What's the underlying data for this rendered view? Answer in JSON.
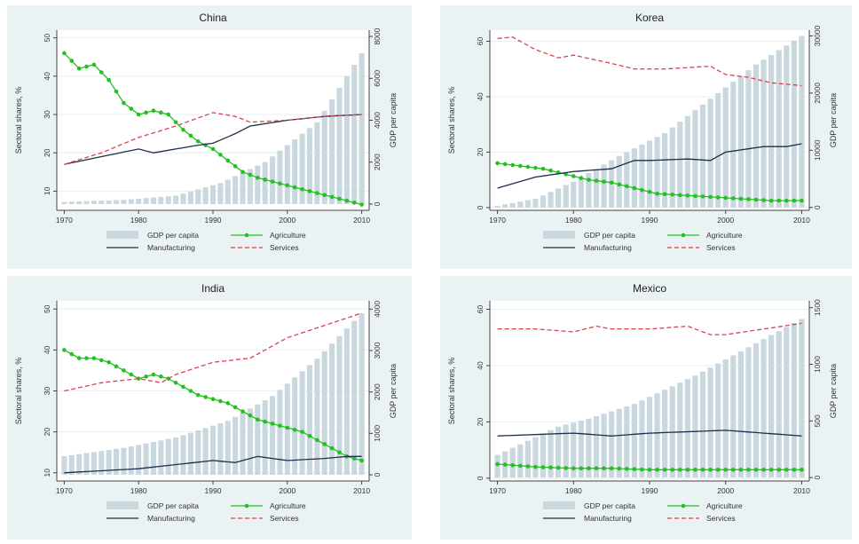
{
  "colors": {
    "gdp": "#c9d7df",
    "agriculture": "#22c21e",
    "manufacturing": "#1c2f4a",
    "services": "#d9424e"
  },
  "legend": {
    "gdp": "GDP per capita",
    "agriculture": "Agriculture",
    "manufacturing": "Manufacturing",
    "services": "Services"
  },
  "chart_data": [
    {
      "type": "bar+line",
      "title": "China",
      "ylabel": "Sectoral shares, %",
      "y2label": "GDP per capita",
      "x_ticks": [
        1970,
        1980,
        1990,
        2000,
        2010
      ],
      "y_ticks": [
        "10",
        "20",
        "30",
        "40",
        "50"
      ],
      "y_tick_values": [
        10,
        20,
        30,
        40,
        50
      ],
      "ylim": [
        5,
        52
      ],
      "y2_ticks": [
        "0",
        "2000",
        "4000",
        "6000",
        "8000"
      ],
      "y2_tick_values": [
        0,
        2000,
        4000,
        6000,
        8000
      ],
      "y2lim": [
        -300,
        8300
      ],
      "legend_position": "bottom",
      "x": [
        1970,
        1980,
        1990,
        2000,
        2010
      ],
      "gdp": [
        100,
        200,
        400,
        1000,
        2000,
        3900,
        7200
      ],
      "gdp_x": [
        1970,
        1978,
        1985,
        1991,
        1997,
        2004,
        2010
      ],
      "series": [
        {
          "key": "agriculture",
          "x": [
            1970,
            1972,
            1974,
            1976,
            1978,
            1980,
            1982,
            1984,
            1986,
            1988,
            1990,
            1992,
            1994,
            1996,
            1998,
            2000,
            2002,
            2004,
            2006,
            2008,
            2010
          ],
          "values": [
            46,
            42,
            43,
            39,
            33,
            30,
            31,
            30,
            26,
            23,
            21,
            18,
            15,
            13.5,
            12.5,
            11.5,
            10.5,
            9.5,
            8.5,
            7.5,
            6.5
          ]
        },
        {
          "key": "manufacturing",
          "x": [
            1970,
            1975,
            1980,
            1982,
            1985,
            1988,
            1990,
            1993,
            1995,
            2000,
            2005,
            2010
          ],
          "values": [
            17,
            19,
            21,
            20,
            21,
            22,
            22.5,
            25,
            27,
            28.5,
            29.5,
            30
          ]
        },
        {
          "key": "services",
          "x": [
            1970,
            1975,
            1980,
            1985,
            1990,
            1993,
            1995,
            2000,
            2005,
            2010
          ],
          "values": [
            17,
            20,
            24,
            27,
            30.5,
            29.5,
            28,
            28.5,
            29.5,
            30
          ]
        }
      ]
    },
    {
      "type": "bar+line",
      "title": "Korea",
      "ylabel": "Sectoral shares, %",
      "y2label": "GDP per capita",
      "x_ticks": [
        1970,
        1980,
        1990,
        2000,
        2010
      ],
      "y_ticks": [
        "0",
        "20",
        "40",
        "60"
      ],
      "y_tick_values": [
        0,
        20,
        40,
        60
      ],
      "ylim": [
        -1,
        64
      ],
      "y2_ticks": [
        "0",
        "10000",
        "20000",
        "30000"
      ],
      "y2_tick_values": [
        0,
        10000,
        20000,
        30000
      ],
      "y2lim": [
        -500,
        31000
      ],
      "legend_position": "bottom",
      "gdp": [
        300,
        1500,
        4500,
        9000,
        13000,
        19000,
        25000,
        30000
      ],
      "gdp_x": [
        1970,
        1975,
        1980,
        1986,
        1992,
        1998,
        2004,
        2010
      ],
      "series": [
        {
          "key": "agriculture",
          "x": [
            1970,
            1973,
            1976,
            1979,
            1982,
            1985,
            1988,
            1991,
            1994,
            1997,
            2000,
            2003,
            2006,
            2010
          ],
          "values": [
            16,
            15,
            14,
            12,
            10,
            9,
            7,
            5,
            4.5,
            4,
            3.5,
            3,
            2.5,
            2.5
          ]
        },
        {
          "key": "manufacturing",
          "x": [
            1970,
            1975,
            1980,
            1985,
            1988,
            1990,
            1995,
            1998,
            2000,
            2005,
            2008,
            2010
          ],
          "values": [
            7,
            11,
            13,
            14,
            17,
            17,
            17.5,
            17,
            20,
            22,
            22,
            23
          ]
        },
        {
          "key": "services",
          "x": [
            1970,
            1972,
            1975,
            1978,
            1980,
            1985,
            1988,
            1992,
            1995,
            1998,
            2000,
            2003,
            2006,
            2010
          ],
          "values": [
            61,
            61.5,
            57,
            54,
            55,
            52,
            50,
            50,
            50.5,
            51,
            48,
            47,
            45,
            44
          ]
        }
      ]
    },
    {
      "type": "bar+line",
      "title": "India",
      "ylabel": "Sectoral shares, %",
      "y2label": "GDP per capita",
      "x_ticks": [
        1970,
        1980,
        1990,
        2000,
        2010
      ],
      "y_ticks": [
        "10",
        "20",
        "30",
        "40",
        "50"
      ],
      "y_tick_values": [
        10,
        20,
        30,
        40,
        50
      ],
      "ylim": [
        8,
        52
      ],
      "y2_ticks": [
        "0",
        "1000",
        "2000",
        "3000",
        "4000"
      ],
      "y2_tick_values": [
        0,
        1000,
        2000,
        3000,
        4000
      ],
      "y2lim": [
        -150,
        4200
      ],
      "legend_position": "bottom",
      "gdp": [
        450,
        650,
        900,
        1300,
        1900,
        2800,
        3900
      ],
      "gdp_x": [
        1970,
        1978,
        1985,
        1992,
        1998,
        2004,
        2010
      ],
      "series": [
        {
          "key": "agriculture",
          "x": [
            1970,
            1972,
            1974,
            1976,
            1978,
            1980,
            1982,
            1984,
            1986,
            1988,
            1990,
            1992,
            1994,
            1996,
            1998,
            2000,
            2002,
            2004,
            2006,
            2008,
            2010
          ],
          "values": [
            40,
            38,
            38,
            37,
            35,
            33,
            34,
            33,
            31,
            29,
            28,
            27,
            25,
            23,
            22,
            21,
            20,
            18,
            16,
            14,
            13
          ]
        },
        {
          "key": "manufacturing",
          "x": [
            1970,
            1975,
            1980,
            1985,
            1990,
            1993,
            1996,
            2000,
            2005,
            2008,
            2010
          ],
          "values": [
            10,
            10.5,
            11,
            12,
            13,
            12.5,
            14,
            13,
            13.5,
            14,
            14
          ]
        },
        {
          "key": "services",
          "x": [
            1970,
            1975,
            1980,
            1983,
            1985,
            1990,
            1995,
            2000,
            2005,
            2010
          ],
          "values": [
            30,
            32,
            33,
            32,
            34,
            37,
            38,
            43,
            46,
            49
          ]
        }
      ]
    },
    {
      "type": "bar+line",
      "title": "Mexico",
      "ylabel": "Sectoral shares, %",
      "y2label": "GDP per capita",
      "x_ticks": [
        1970,
        1980,
        1990,
        2000,
        2010
      ],
      "y_ticks": [
        "0",
        "20",
        "40",
        "60"
      ],
      "y_tick_values": [
        0,
        20,
        40,
        60
      ],
      "ylim": [
        -1,
        63
      ],
      "y2_ticks": [
        "0",
        "500",
        "1000",
        "1500"
      ],
      "y2_tick_values": [
        0,
        500,
        1000,
        1500
      ],
      "y2lim": [
        -30,
        1560
      ],
      "legend_position": "bottom",
      "gdp": [
        200,
        450,
        520,
        650,
        900,
        1150,
        1400
      ],
      "gdp_x": [
        1970,
        1978,
        1982,
        1988,
        1996,
        2003,
        2010
      ],
      "series": [
        {
          "key": "agriculture",
          "x": [
            1970,
            1975,
            1980,
            1985,
            1990,
            1995,
            2000,
            2005,
            2010
          ],
          "values": [
            5,
            4,
            3.5,
            3.5,
            3,
            3,
            3,
            3,
            3
          ]
        },
        {
          "key": "manufacturing",
          "x": [
            1970,
            1975,
            1980,
            1985,
            1990,
            1995,
            2000,
            2005,
            2010
          ],
          "values": [
            15,
            15.5,
            16,
            15,
            16,
            16.5,
            17,
            16,
            15
          ]
        },
        {
          "key": "services",
          "x": [
            1970,
            1975,
            1980,
            1983,
            1985,
            1990,
            1995,
            1998,
            2000,
            2005,
            2010
          ],
          "values": [
            53,
            53,
            52,
            54,
            53,
            53,
            54,
            51,
            51,
            53,
            55
          ]
        }
      ]
    }
  ]
}
